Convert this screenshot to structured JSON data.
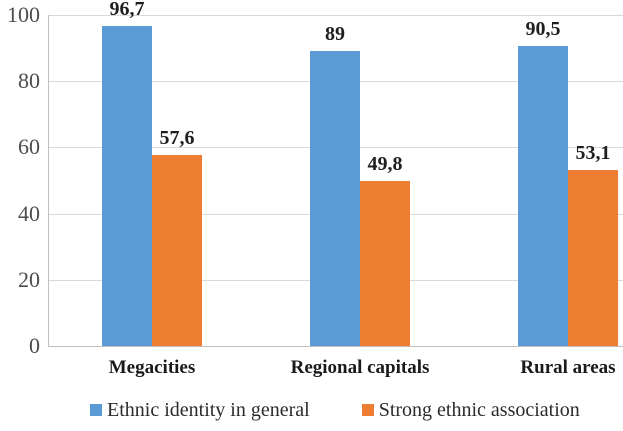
{
  "chart_data": {
    "type": "bar",
    "title": "",
    "xlabel": "",
    "ylabel": "",
    "categories": [
      "Megacities",
      "Regional capitals",
      "Rural areas"
    ],
    "series": [
      {
        "name": "Ethnic identity in general",
        "color": "#5B9BD5",
        "values": [
          96.7,
          89,
          90.5
        ],
        "value_labels": [
          "96,7",
          "89",
          "90,5"
        ]
      },
      {
        "name": "Strong ethnic association",
        "color": "#ED7D31",
        "values": [
          57.6,
          49.8,
          53.1
        ],
        "value_labels": [
          "57,6",
          "49,8",
          "53,1"
        ]
      }
    ],
    "y_axis": {
      "min": 0,
      "max": 100,
      "tick_interval": 20,
      "tick_labels": [
        "0",
        "20",
        "40",
        "60",
        "80",
        "100"
      ]
    },
    "grid": true,
    "legend_position": "bottom",
    "colors": {
      "gridline": "#D9D9D9",
      "axis_line": "#BFBFBF",
      "tick_text": "#4D4D4D",
      "label_text": "#1F1F1F"
    }
  }
}
